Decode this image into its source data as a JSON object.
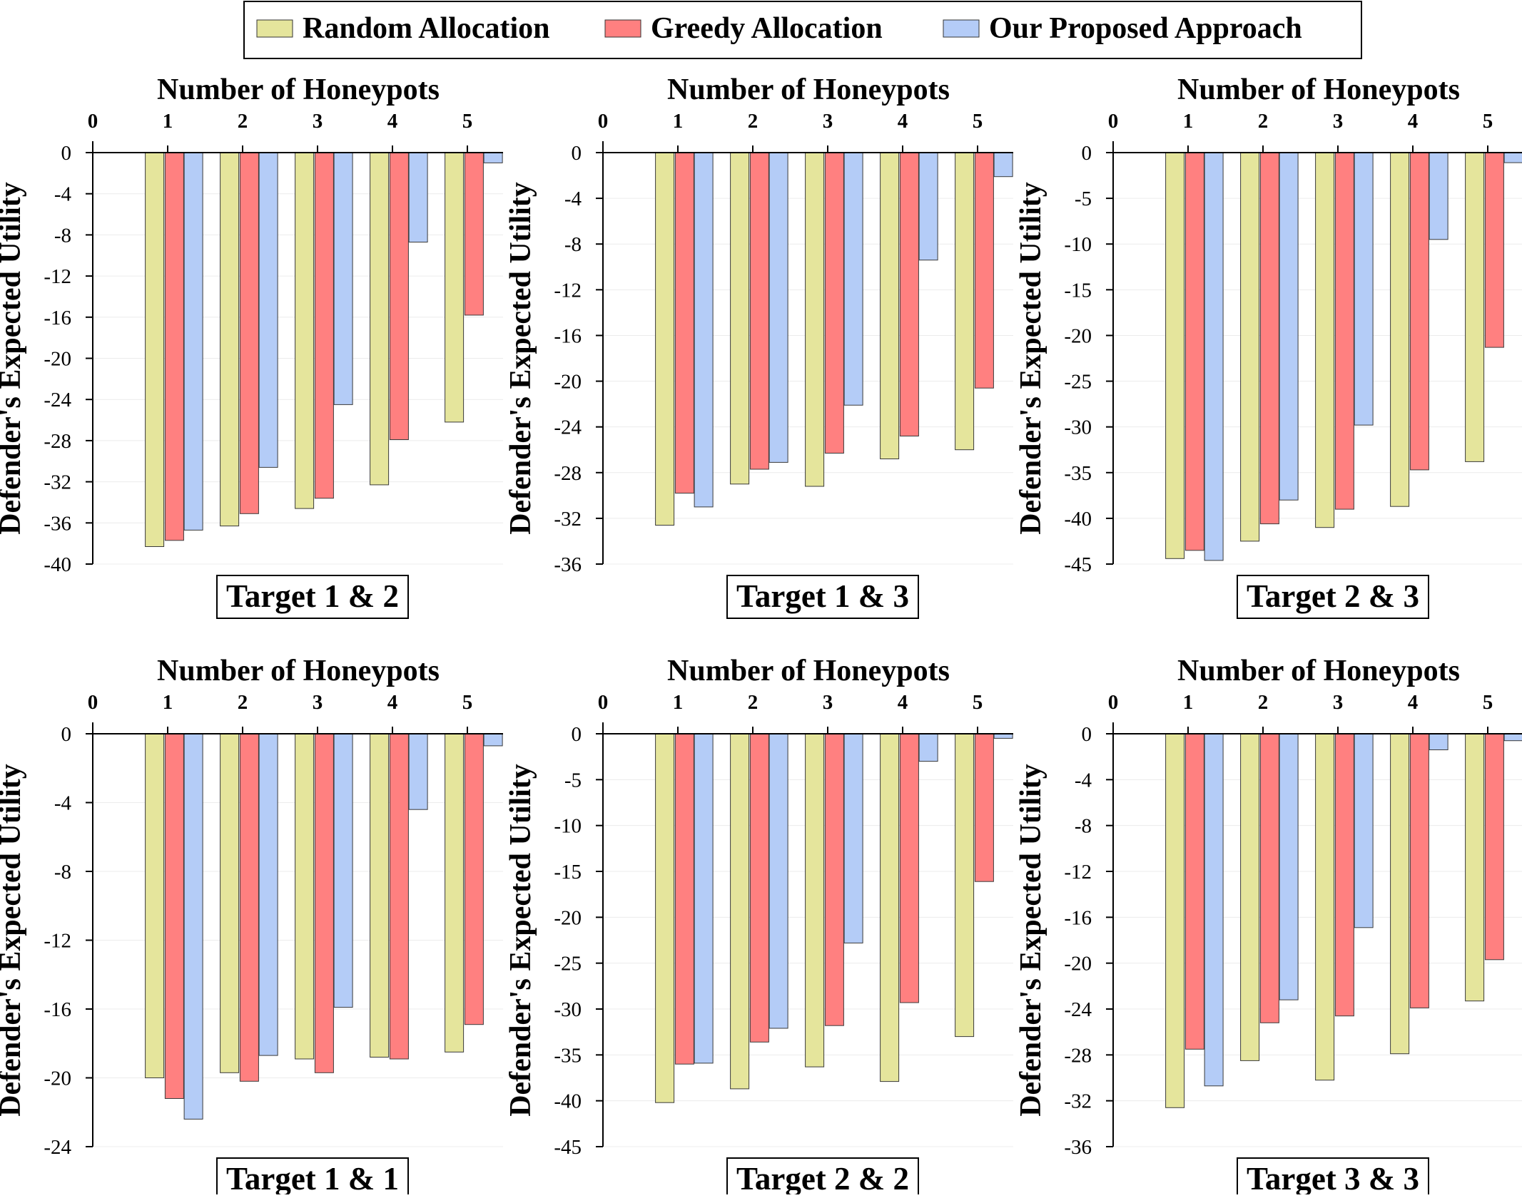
{
  "legend": {
    "position": "top-center",
    "entries": [
      {
        "label": "Random Allocation",
        "color": "#e5e59c"
      },
      {
        "label": "Greedy Allocation",
        "color": "#ff8080"
      },
      {
        "label": "Our Proposed Approach",
        "color": "#b4ccf7"
      }
    ]
  },
  "chart_data": [
    {
      "type": "bar",
      "title": "Target 1 & 2",
      "xlabel": "Number of Honeypots",
      "ylabel": "Defender's Expected Utility",
      "x_ticks": [
        0,
        1,
        2,
        3,
        4,
        5
      ],
      "categories": [
        1,
        2,
        3,
        4,
        5
      ],
      "ylim": [
        -40,
        0
      ],
      "y_ticks": [
        0,
        -4,
        -8,
        -12,
        -16,
        -20,
        -24,
        -28,
        -32,
        -36,
        -40
      ],
      "series": [
        {
          "name": "Random Allocation",
          "values": [
            -38.3,
            -36.3,
            -34.6,
            -32.3,
            -26.2
          ]
        },
        {
          "name": "Greedy Allocation",
          "values": [
            -37.7,
            -35.1,
            -33.6,
            -27.9,
            -15.8
          ]
        },
        {
          "name": "Our Proposed Approach",
          "values": [
            -36.7,
            -30.6,
            -24.5,
            -8.7,
            -1.0
          ]
        }
      ]
    },
    {
      "type": "bar",
      "title": "Target 1 & 3",
      "xlabel": "Number of Honeypots",
      "ylabel": "Defender's Expected Utility",
      "x_ticks": [
        0,
        1,
        2,
        3,
        4,
        5
      ],
      "categories": [
        1,
        2,
        3,
        4,
        5
      ],
      "ylim": [
        -36,
        0
      ],
      "y_ticks": [
        0,
        -4,
        -8,
        -12,
        -16,
        -20,
        -24,
        -28,
        -32,
        -36
      ],
      "series": [
        {
          "name": "Random Allocation",
          "values": [
            -32.6,
            -29.0,
            -29.2,
            -26.8,
            -26.0
          ]
        },
        {
          "name": "Greedy Allocation",
          "values": [
            -29.8,
            -27.7,
            -26.3,
            -24.8,
            -20.6
          ]
        },
        {
          "name": "Our Proposed Approach",
          "values": [
            -31.0,
            -27.1,
            -22.1,
            -9.4,
            -2.1
          ]
        }
      ]
    },
    {
      "type": "bar",
      "title": "Target 2 & 3",
      "xlabel": "Number of Honeypots",
      "ylabel": "Defender's Expected Utility",
      "x_ticks": [
        0,
        1,
        2,
        3,
        4,
        5
      ],
      "categories": [
        1,
        2,
        3,
        4,
        5
      ],
      "ylim": [
        -45,
        0
      ],
      "y_ticks": [
        0,
        -5,
        -10,
        -15,
        -20,
        -25,
        -30,
        -35,
        -40,
        -45
      ],
      "series": [
        {
          "name": "Random Allocation",
          "values": [
            -44.4,
            -42.5,
            -41.0,
            -38.7,
            -33.8
          ]
        },
        {
          "name": "Greedy Allocation",
          "values": [
            -43.5,
            -40.6,
            -39.0,
            -34.7,
            -21.3
          ]
        },
        {
          "name": "Our Proposed Approach",
          "values": [
            -44.6,
            -38.0,
            -29.8,
            -9.5,
            -1.1
          ]
        }
      ]
    },
    {
      "type": "bar",
      "title": "Target 1 & 1",
      "xlabel": "Number of Honeypots",
      "ylabel": "Defender's Expected Utility",
      "x_ticks": [
        0,
        1,
        2,
        3,
        4,
        5
      ],
      "categories": [
        1,
        2,
        3,
        4,
        5
      ],
      "ylim": [
        -24,
        0
      ],
      "y_ticks": [
        0,
        -4,
        -8,
        -12,
        -16,
        -20,
        -24
      ],
      "series": [
        {
          "name": "Random Allocation",
          "values": [
            -20.0,
            -19.7,
            -18.9,
            -18.8,
            -18.5
          ]
        },
        {
          "name": "Greedy Allocation",
          "values": [
            -21.2,
            -20.2,
            -19.7,
            -18.9,
            -16.9
          ]
        },
        {
          "name": "Our Proposed Approach",
          "values": [
            -22.4,
            -18.7,
            -15.9,
            -4.4,
            -0.7
          ]
        }
      ]
    },
    {
      "type": "bar",
      "title": "Target 2 & 2",
      "xlabel": "Number of Honeypots",
      "ylabel": "Defender's Expected Utility",
      "x_ticks": [
        0,
        1,
        2,
        3,
        4,
        5
      ],
      "categories": [
        1,
        2,
        3,
        4,
        5
      ],
      "ylim": [
        -45,
        0
      ],
      "y_ticks": [
        0,
        -5,
        -10,
        -15,
        -20,
        -25,
        -30,
        -35,
        -40,
        -45
      ],
      "series": [
        {
          "name": "Random Allocation",
          "values": [
            -40.2,
            -38.7,
            -36.3,
            -37.9,
            -33.0
          ]
        },
        {
          "name": "Greedy Allocation",
          "values": [
            -36.0,
            -33.6,
            -31.8,
            -29.3,
            -16.1
          ]
        },
        {
          "name": "Our Proposed Approach",
          "values": [
            -35.9,
            -32.1,
            -22.8,
            -3.0,
            -0.5
          ]
        }
      ]
    },
    {
      "type": "bar",
      "title": "Target 3 & 3",
      "xlabel": "Number of Honeypots",
      "ylabel": "Defender's Expected Utility",
      "x_ticks": [
        0,
        1,
        2,
        3,
        4,
        5
      ],
      "categories": [
        1,
        2,
        3,
        4,
        5
      ],
      "ylim": [
        -36,
        0
      ],
      "y_ticks": [
        0,
        -4,
        -8,
        -12,
        -16,
        -20,
        -24,
        -28,
        -32,
        -36
      ],
      "series": [
        {
          "name": "Random Allocation",
          "values": [
            -32.6,
            -28.5,
            -30.2,
            -27.9,
            -23.3
          ]
        },
        {
          "name": "Greedy Allocation",
          "values": [
            -27.5,
            -25.2,
            -24.6,
            -23.9,
            -19.7
          ]
        },
        {
          "name": "Our Proposed Approach",
          "values": [
            -30.7,
            -23.2,
            -16.9,
            -1.4,
            -0.6
          ]
        }
      ]
    }
  ]
}
